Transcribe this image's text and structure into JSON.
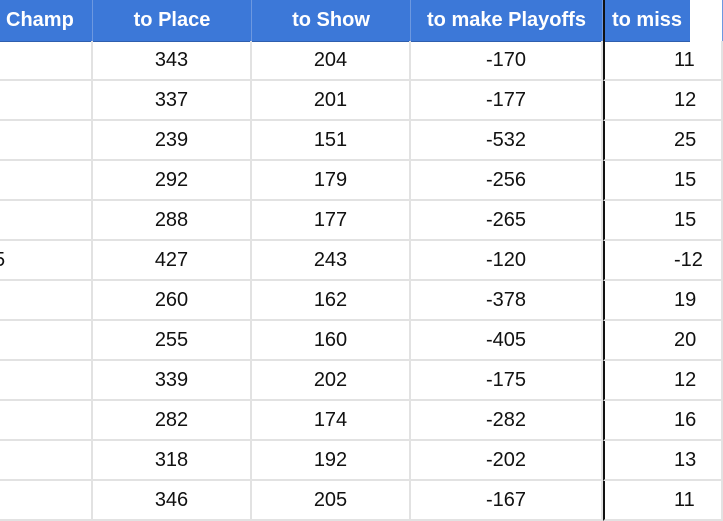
{
  "header": {
    "columns": [
      "Champ",
      "to Place",
      "to Show",
      "to make Playoffs",
      "to miss"
    ]
  },
  "rows": [
    {
      "champ": "",
      "place": "343",
      "show": "204",
      "playoffs": "-170",
      "miss": "11"
    },
    {
      "champ": "",
      "place": "337",
      "show": "201",
      "playoffs": "-177",
      "miss": "12"
    },
    {
      "champ": "",
      "place": "239",
      "show": "151",
      "playoffs": "-532",
      "miss": "25"
    },
    {
      "champ": "",
      "place": "292",
      "show": "179",
      "playoffs": "-256",
      "miss": "15"
    },
    {
      "champ": "",
      "place": "288",
      "show": "177",
      "playoffs": "-265",
      "miss": "15"
    },
    {
      "champ": "5",
      "place": "427",
      "show": "243",
      "playoffs": "-120",
      "miss": "-12"
    },
    {
      "champ": "",
      "place": "260",
      "show": "162",
      "playoffs": "-378",
      "miss": "19"
    },
    {
      "champ": "",
      "place": "255",
      "show": "160",
      "playoffs": "-405",
      "miss": "20"
    },
    {
      "champ": "",
      "place": "339",
      "show": "202",
      "playoffs": "-175",
      "miss": "12"
    },
    {
      "champ": "",
      "place": "282",
      "show": "174",
      "playoffs": "-282",
      "miss": "16"
    },
    {
      "champ": "",
      "place": "318",
      "show": "192",
      "playoffs": "-202",
      "miss": "13"
    },
    {
      "champ": "",
      "place": "346",
      "show": "205",
      "playoffs": "-167",
      "miss": "11"
    }
  ],
  "colors": {
    "header_bg": "#3c78d8",
    "header_text": "#ffffff",
    "gridline": "#e2e2e2"
  }
}
